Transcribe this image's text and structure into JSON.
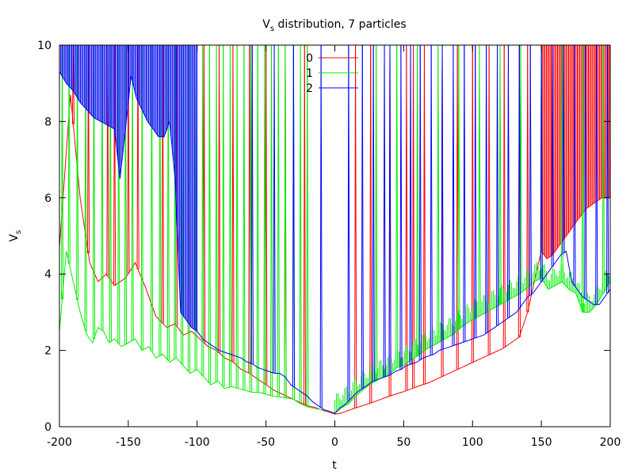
{
  "chart_data": {
    "type": "line",
    "title_main": "V",
    "title_sub": "s",
    "title_rest": " distribution, 7 particles",
    "xlabel": "t",
    "ylabel_main": "V",
    "ylabel_sub": "s",
    "xlim": [
      -200,
      200
    ],
    "ylim": [
      0,
      10
    ],
    "xticks": [
      -200,
      -150,
      -100,
      -50,
      0,
      50,
      100,
      150,
      200
    ],
    "yticks": [
      0,
      2,
      4,
      6,
      8,
      10
    ],
    "xtick_labels": [
      "-200",
      "-150",
      "-100",
      "-50",
      "0",
      "50",
      "100",
      "150",
      "200"
    ],
    "ytick_labels": [
      "0",
      "2",
      "4",
      "6",
      "8",
      "10"
    ],
    "grid": false,
    "legend_position": "top-center",
    "series": [
      {
        "name": "0",
        "color": "#ff0000",
        "x": [
          -200,
          -192,
          -185,
          -178,
          -172,
          -166,
          -160,
          -152,
          -145,
          -138,
          -130,
          -122,
          -116,
          -110,
          -104,
          -98,
          -92,
          -86,
          -80,
          -74,
          -68,
          -62,
          -56,
          -50,
          -44,
          -38,
          -32,
          -26,
          -20,
          -14,
          -8,
          -4,
          0,
          4,
          8,
          14,
          20,
          26,
          32,
          38,
          44,
          50,
          56,
          62,
          68,
          74,
          80,
          86,
          92,
          98,
          104,
          110,
          116,
          122,
          128,
          134,
          140,
          146,
          150,
          154,
          158,
          162,
          166,
          170,
          174,
          178,
          182,
          186,
          190,
          194,
          198
        ],
        "y": [
          4.7,
          8.7,
          6.0,
          4.3,
          3.8,
          4.0,
          3.7,
          3.9,
          4.3,
          3.7,
          2.9,
          2.6,
          2.7,
          2.4,
          2.5,
          2.3,
          2.1,
          2.0,
          1.8,
          1.7,
          1.5,
          1.4,
          1.25,
          1.1,
          0.95,
          0.85,
          0.75,
          0.65,
          0.55,
          0.5,
          0.42,
          0.38,
          0.33,
          0.35,
          0.4,
          0.48,
          0.55,
          0.62,
          0.7,
          0.78,
          0.85,
          0.92,
          1.0,
          1.08,
          1.15,
          1.25,
          1.35,
          1.45,
          1.55,
          1.65,
          1.75,
          1.85,
          1.95,
          2.05,
          2.2,
          2.35,
          3.0,
          4.0,
          4.6,
          4.4,
          4.5,
          4.7,
          4.9,
          5.1,
          5.3,
          5.5,
          5.7,
          5.8,
          5.9,
          6.0,
          6.0
        ],
        "spikes_x": [
          -190,
          -179,
          -165,
          -160,
          -150,
          -143,
          -125,
          -115,
          -106,
          -95,
          -84,
          -74,
          -62,
          -50,
          -36,
          -22,
          15,
          26,
          40,
          52,
          57,
          65,
          78,
          89,
          100,
          112,
          123,
          134,
          140
        ],
        "dense_band": [
          150,
          200
        ]
      },
      {
        "name": "1",
        "color": "#00ee00",
        "x": [
          -200,
          -195,
          -190,
          -185,
          -180,
          -176,
          -172,
          -168,
          -164,
          -160,
          -155,
          -150,
          -145,
          -140,
          -135,
          -130,
          -125,
          -120,
          -115,
          -110,
          -105,
          -100,
          -95,
          -90,
          -85,
          -80,
          -75,
          -70,
          -65,
          -60,
          -55,
          -50,
          -45,
          -40,
          -35,
          -30,
          -25,
          -20,
          -15,
          -10,
          -5,
          0,
          5,
          10,
          15,
          20,
          25,
          30,
          35,
          40,
          45,
          50,
          55,
          60,
          65,
          70,
          75,
          80,
          85,
          90,
          95,
          100,
          105,
          110,
          115,
          120,
          125,
          130,
          135,
          140,
          145,
          150,
          155,
          160,
          165,
          170,
          175,
          180,
          185,
          190,
          195,
          200
        ],
        "y": [
          2.5,
          4.6,
          3.8,
          3.0,
          2.4,
          2.2,
          2.6,
          2.5,
          2.2,
          2.3,
          2.1,
          2.2,
          2.3,
          2.0,
          2.1,
          1.8,
          1.9,
          1.7,
          1.8,
          1.6,
          1.4,
          1.5,
          1.3,
          1.1,
          1.2,
          1.0,
          1.05,
          1.0,
          0.95,
          0.9,
          0.9,
          0.85,
          0.8,
          0.78,
          0.75,
          0.72,
          0.6,
          0.52,
          0.48,
          0.45,
          0.42,
          0.35,
          0.5,
          0.6,
          0.8,
          0.95,
          1.1,
          1.2,
          1.3,
          1.4,
          1.55,
          1.6,
          1.75,
          1.85,
          2.0,
          2.1,
          2.2,
          2.3,
          2.4,
          2.55,
          2.7,
          2.8,
          2.9,
          3.0,
          3.1,
          3.2,
          3.3,
          3.4,
          3.5,
          3.65,
          3.8,
          3.9,
          3.6,
          3.7,
          3.8,
          3.6,
          3.5,
          3.0,
          3.0,
          3.2,
          3.5,
          3.8
        ],
        "spikes_x": [
          -198,
          -193,
          -187,
          -181,
          -175,
          -169,
          -163,
          -157,
          -152,
          -147,
          -140,
          -133,
          -127,
          -121,
          -116,
          -111,
          -106,
          -101,
          -96,
          -91,
          -86,
          -81,
          -76,
          -71,
          -66,
          -61,
          -56,
          -51,
          -46,
          -41,
          -36,
          -30,
          -25,
          -20,
          30,
          45,
          60,
          75,
          90,
          105,
          120,
          135,
          150,
          165,
          180,
          195
        ],
        "dense_band": [
          0,
          200
        ]
      },
      {
        "name": "2",
        "color": "#0000ff",
        "x": [
          -200,
          -195,
          -190,
          -185,
          -180,
          -175,
          -170,
          -165,
          -160,
          -156,
          -152,
          -148,
          -144,
          -140,
          -136,
          -132,
          -128,
          -124,
          -120,
          -116,
          -112,
          -108,
          -104,
          -100,
          -96,
          -92,
          -88,
          -84,
          -80,
          -76,
          -72,
          -68,
          -64,
          -60,
          -56,
          -52,
          -48,
          -44,
          -40,
          -36,
          -32,
          -28,
          -24,
          -20,
          -16,
          -12,
          -8,
          -4,
          0,
          4,
          8,
          12,
          16,
          20,
          24,
          28,
          32,
          36,
          40,
          44,
          48,
          52,
          56,
          60,
          64,
          68,
          72,
          76,
          80,
          84,
          88,
          92,
          96,
          100,
          104,
          108,
          112,
          116,
          120,
          124,
          128,
          132,
          136,
          140,
          144,
          148,
          152,
          156,
          160,
          164,
          168,
          172,
          176,
          180,
          184,
          188,
          192,
          196,
          200
        ],
        "y": [
          9.3,
          9.0,
          8.8,
          8.5,
          8.3,
          8.1,
          8.0,
          7.9,
          7.8,
          6.5,
          7.8,
          9.2,
          8.6,
          8.3,
          8.0,
          7.8,
          7.6,
          7.6,
          8.0,
          6.5,
          3.0,
          2.8,
          2.6,
          2.5,
          2.3,
          2.2,
          2.1,
          2.0,
          1.95,
          1.9,
          1.85,
          1.8,
          1.7,
          1.65,
          1.55,
          1.5,
          1.45,
          1.4,
          1.4,
          1.3,
          1.1,
          1.0,
          0.9,
          0.8,
          0.65,
          0.55,
          0.45,
          0.4,
          0.35,
          0.5,
          0.6,
          0.75,
          0.9,
          1.0,
          1.1,
          1.2,
          1.25,
          1.3,
          1.35,
          1.45,
          1.5,
          1.6,
          1.65,
          1.7,
          1.8,
          1.85,
          1.9,
          2.0,
          2.05,
          2.1,
          2.15,
          2.2,
          2.25,
          2.3,
          2.35,
          2.4,
          2.5,
          2.6,
          2.7,
          2.8,
          2.9,
          3.0,
          3.2,
          3.4,
          3.5,
          3.7,
          3.9,
          4.1,
          4.3,
          4.5,
          4.6,
          3.8,
          3.6,
          3.4,
          3.3,
          3.2,
          3.2,
          3.4,
          3.6
        ],
        "spikes_x": [
          -60,
          -44,
          -30,
          -10,
          10,
          20,
          28,
          36,
          40,
          48,
          55,
          62,
          70,
          78,
          86,
          94,
          102,
          110,
          118,
          126,
          134,
          142,
          150,
          158,
          166,
          174,
          182,
          190,
          198
        ],
        "dense_band": [
          -200,
          -100
        ]
      }
    ]
  }
}
